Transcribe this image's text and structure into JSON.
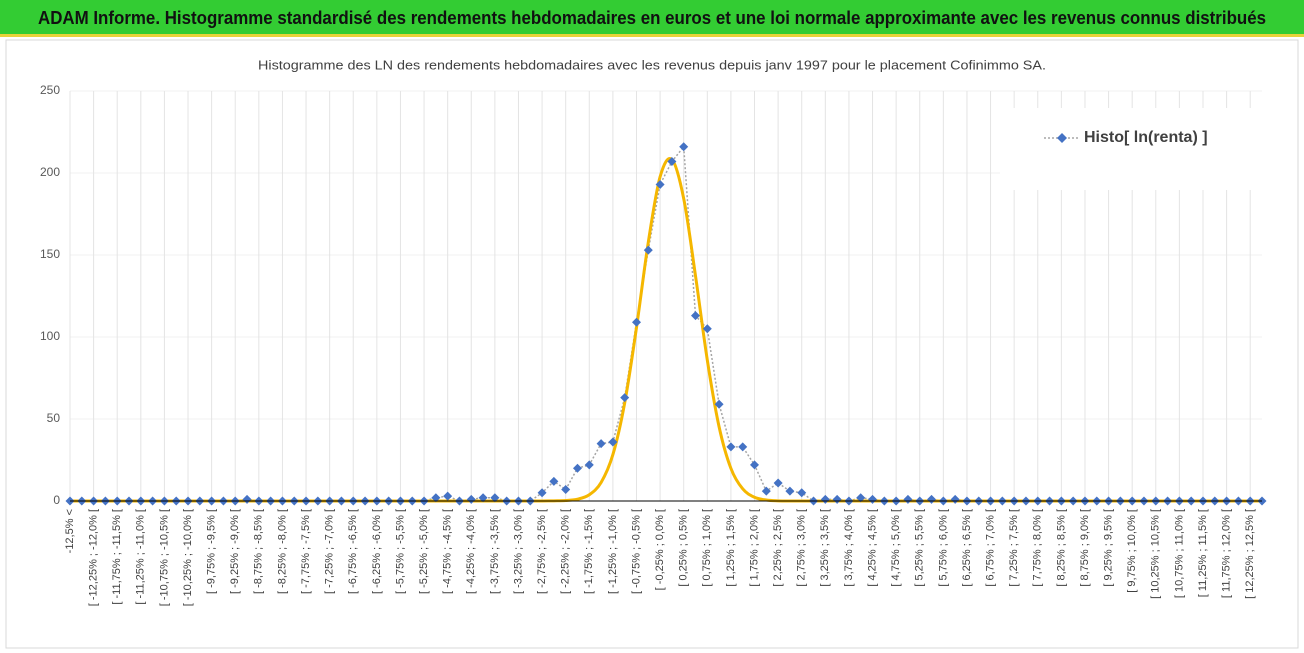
{
  "chart_data": {
    "type": "line",
    "header": "ADAM Informe. Histogramme standardisé des rendements hebdomadaires en euros et une loi normale approximante avec les revenus connus distribués",
    "title": "Histogramme  des LN des rendements hebdomadaires avec les revenus depuis janv 1997 pour le placement Cofinimmo SA.",
    "categories": [
      "-12,5% <",
      null,
      "[ -12,25% ; -12,0% [",
      null,
      "[ -11,75% ; -11,5% [",
      null,
      "[ -11,25% ; -11,0% [",
      null,
      "[ -10,75% ; -10,5% [",
      null,
      "[ -10,25% ; -10,0% [",
      null,
      "[ -9,75% ; -9,5% [",
      null,
      "[ -9,25% ; -9,0% [",
      null,
      "[ -8,75% ; -8,5% [",
      null,
      "[ -8,25% ; -8,0% [",
      null,
      "[ -7,75% ; -7,5% [",
      null,
      "[ -7,25% ; -7,0% [",
      null,
      "[ -6,75% ; -6,5% [",
      null,
      "[ -6,25% ; -6,0% [",
      null,
      "[ -5,75% ; -5,5% [",
      null,
      "[ -5,25% ; -5,0% [",
      null,
      "[ -4,75% ; -4,5% [",
      null,
      "[ -4,25% ; -4,0% [",
      null,
      "[ -3,75% ; -3,5% [",
      null,
      "[ -3,25% ; -3,0% [",
      null,
      "[ -2,75% ; -2,5% [",
      null,
      "[ -2,25% ; -2,0% [",
      null,
      "[ -1,75% ; -1,5% [",
      null,
      "[ -1,25% ; -1,0% [",
      null,
      "[ -0,75% ; -0,5% [",
      null,
      "[ -0,25% ; 0,0% [",
      null,
      "[ 0,25% ; 0,5% [",
      null,
      "[ 0,75% ; 1,0% [",
      null,
      "[ 1,25% ; 1,5% [",
      null,
      "[ 1,75% ; 2,0% [",
      null,
      "[ 2,25% ; 2,5% [",
      null,
      "[ 2,75% ; 3,0% [",
      null,
      "[ 3,25% ; 3,5% [",
      null,
      "[ 3,75% ; 4,0% [",
      null,
      "[ 4,25% ; 4,5% [",
      null,
      "[ 4,75% ; 5,0% [",
      null,
      "[ 5,25% ; 5,5% [",
      null,
      "[ 5,75% ; 6,0% [",
      null,
      "[ 6,25% ; 6,5% [",
      null,
      "[ 6,75% ; 7,0% [",
      null,
      "[ 7,25% ; 7,5% [",
      null,
      "[ 7,75% ; 8,0% [",
      null,
      "[ 8,25% ; 8,5% [",
      null,
      "[ 8,75% ; 9,0% [",
      null,
      "[ 9,25% ; 9,5% [",
      null,
      "[ 9,75% ; 10,0% [",
      null,
      "[ 10,25% ; 10,5% [",
      null,
      "[ 10,75% ; 11,0% [",
      null,
      "[ 11,25% ; 11,5% [",
      null,
      "[ 11,75% ; 12,0% [",
      null,
      "[ 12,25% ; 12,5% [",
      null
    ],
    "series": [
      {
        "name": "Histo[ ln(renta) ]",
        "color": "#4472c4",
        "line_color": "#a5a5a5",
        "values": [
          0,
          0,
          0,
          0,
          0,
          0,
          0,
          0,
          0,
          0,
          0,
          0,
          0,
          0,
          0,
          1,
          0,
          0,
          0,
          0,
          0,
          0,
          0,
          0,
          0,
          0,
          0,
          0,
          0,
          0,
          0,
          2,
          3,
          0,
          1,
          2,
          2,
          0,
          0,
          0,
          5,
          12,
          7,
          20,
          22,
          35,
          36,
          63,
          109,
          153,
          193,
          207,
          216,
          113,
          105,
          59,
          33,
          33,
          22,
          6,
          11,
          6,
          5,
          0,
          1,
          1,
          0,
          2,
          1,
          0,
          0,
          1,
          0,
          1,
          0,
          1,
          0,
          0,
          0,
          0,
          0,
          0,
          0,
          0,
          0,
          0,
          0,
          0,
          0,
          0,
          0,
          0,
          0,
          0,
          0,
          0,
          0,
          0,
          0,
          0,
          0,
          0
        ]
      },
      {
        "color": "#f5b700",
        "values": [
          0,
          0,
          0,
          0,
          0,
          0,
          0,
          0,
          0,
          0,
          0,
          0,
          0,
          0,
          0,
          0,
          0,
          0,
          0,
          0,
          0,
          0,
          0,
          0,
          0,
          0,
          0,
          0,
          0,
          0,
          0,
          0,
          0,
          0,
          0,
          0,
          0,
          0,
          0,
          0,
          0,
          0.1,
          0.3,
          1.1,
          3.8,
          11.3,
          28.3,
          59.8,
          105.8,
          157.8,
          197.7,
          208.3,
          184.4,
          137.3,
          85.9,
          45.2,
          19.9,
          7.4,
          2.3,
          0.6,
          0.1,
          0,
          0,
          0,
          0,
          0,
          0,
          0,
          0,
          0,
          0,
          0,
          0,
          0,
          0,
          0,
          0,
          0,
          0,
          0,
          0,
          0,
          0,
          0,
          0,
          0,
          0,
          0,
          0,
          0,
          0,
          0,
          0,
          0,
          0,
          0,
          0,
          0,
          0,
          0,
          0,
          0
        ]
      }
    ],
    "ylim": [
      0,
      250
    ],
    "yticks": [
      0,
      50,
      100,
      150,
      200,
      250
    ],
    "grid": true,
    "legend": "top-right"
  }
}
